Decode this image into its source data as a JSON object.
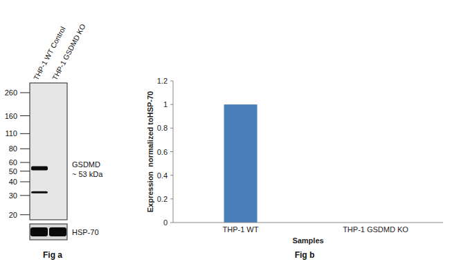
{
  "blot": {
    "caption": "Fig a",
    "lanes": [
      "THP-1 WT Control",
      "THP-1 GSDMD KO"
    ],
    "markers": [
      260,
      160,
      110,
      80,
      60,
      50,
      40,
      30,
      20
    ],
    "kda_range": [
      18,
      319
    ],
    "log": true,
    "target": {
      "name": "GSDMD",
      "size_label": "~ 53 kDa",
      "bands": [
        {
          "lane": 0,
          "kda": 53
        },
        {
          "lane": 0,
          "kda": 32
        }
      ]
    },
    "loading_control": {
      "name": "HSP-70",
      "lanes": [
        0,
        1
      ]
    }
  },
  "chart_data": {
    "type": "bar",
    "caption": "Fig b",
    "x_label": "Samples",
    "y_label": "Expression  normalized toHSP-70",
    "categories": [
      "THP-1 WT",
      "THP-1 GSDMD KO"
    ],
    "values": [
      1,
      0
    ],
    "color": "#4a7ebb",
    "ylim": [
      0,
      1.2
    ],
    "yticks": [
      0,
      0.2,
      0.4,
      0.6,
      0.8,
      1,
      1.2
    ],
    "grid": false
  }
}
